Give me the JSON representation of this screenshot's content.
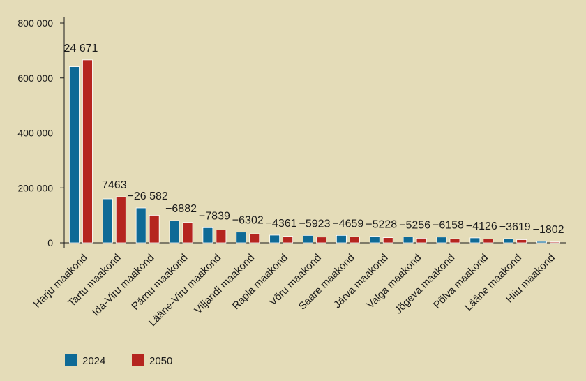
{
  "chart_data": {
    "type": "bar",
    "title": "",
    "xlabel": "",
    "ylabel": "",
    "ylim": [
      0,
      800000
    ],
    "yticks": [
      0,
      200000,
      400000,
      600000,
      800000
    ],
    "ytick_labels": [
      "0",
      "200 000",
      "400 000",
      "600 000",
      "800 000"
    ],
    "grid": false,
    "legend_position": "bottom-left",
    "categories": [
      "Harju maakond",
      "Tartu maakond",
      "Ida-Viru maakond",
      "Pärnu maakond",
      "Lääne-Viru maakond",
      "Viljandi maakond",
      "Rapla maakond",
      "Võru maakond",
      "Saare maakond",
      "Järva maakond",
      "Valga maakond",
      "Jõgeva maakond",
      "Põlva maakond",
      "Lääne maakond",
      "Hiiu maakond"
    ],
    "series": [
      {
        "name": "2024",
        "color": "#0e6a96",
        "values": [
          641000,
          160000,
          127000,
          81000,
          55000,
          39000,
          28000,
          27000,
          27000,
          24000,
          22000,
          21000,
          18000,
          15000,
          5000
        ]
      },
      {
        "name": "2050",
        "color": "#b5251f",
        "values": [
          665671,
          167463,
          100418,
          74118,
          47161,
          32698,
          23639,
          21077,
          22341,
          18772,
          16744,
          14842,
          13874,
          11381,
          3198
        ]
      }
    ],
    "data_labels": [
      "24 671",
      "7463",
      "−26 582",
      "−6882",
      "−7839",
      "−6302",
      "−4361",
      "−5923",
      "−4659",
      "−5228",
      "−5256",
      "−6158",
      "−4126",
      "−3619",
      "−1802"
    ]
  }
}
